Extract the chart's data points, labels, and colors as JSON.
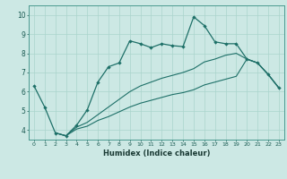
{
  "xlabel": "Humidex (Indice chaleur)",
  "bg_color": "#cce8e4",
  "grid_color": "#aad4cc",
  "line_color": "#1e7068",
  "xlim": [
    -0.5,
    23.5
  ],
  "ylim": [
    3.5,
    10.5
  ],
  "xticks": [
    0,
    1,
    2,
    3,
    4,
    5,
    6,
    7,
    8,
    9,
    10,
    11,
    12,
    13,
    14,
    15,
    16,
    17,
    18,
    19,
    20,
    21,
    22,
    23
  ],
  "yticks": [
    4,
    5,
    6,
    7,
    8,
    9,
    10
  ],
  "line1_x": [
    0,
    1,
    2,
    3,
    4,
    5,
    6,
    7,
    8,
    9,
    10,
    11,
    12,
    13,
    14,
    15,
    16,
    17,
    18,
    19,
    20,
    21,
    22,
    23
  ],
  "line1_y": [
    6.3,
    5.2,
    3.85,
    3.7,
    4.25,
    5.05,
    6.5,
    7.3,
    7.5,
    8.65,
    8.5,
    8.3,
    8.5,
    8.4,
    8.35,
    9.9,
    9.45,
    8.6,
    8.5,
    8.5,
    7.7,
    7.5,
    6.9,
    6.2
  ],
  "line2_x": [
    2,
    3,
    4,
    5,
    6,
    7,
    8,
    9,
    10,
    11,
    12,
    13,
    14,
    15,
    16,
    17,
    18,
    19,
    20,
    21,
    22,
    23
  ],
  "line2_y": [
    3.85,
    3.7,
    4.15,
    4.4,
    4.8,
    5.2,
    5.6,
    6.0,
    6.3,
    6.5,
    6.7,
    6.85,
    7.0,
    7.2,
    7.55,
    7.7,
    7.9,
    8.0,
    7.7,
    7.5,
    6.9,
    6.2
  ],
  "line3_x": [
    2,
    3,
    4,
    5,
    6,
    7,
    8,
    9,
    10,
    11,
    12,
    13,
    14,
    15,
    16,
    17,
    18,
    19,
    20,
    21,
    22,
    23
  ],
  "line3_y": [
    3.85,
    3.7,
    4.05,
    4.2,
    4.5,
    4.7,
    4.95,
    5.2,
    5.4,
    5.55,
    5.7,
    5.85,
    5.95,
    6.1,
    6.35,
    6.5,
    6.65,
    6.8,
    7.7,
    7.5,
    6.9,
    6.2
  ]
}
